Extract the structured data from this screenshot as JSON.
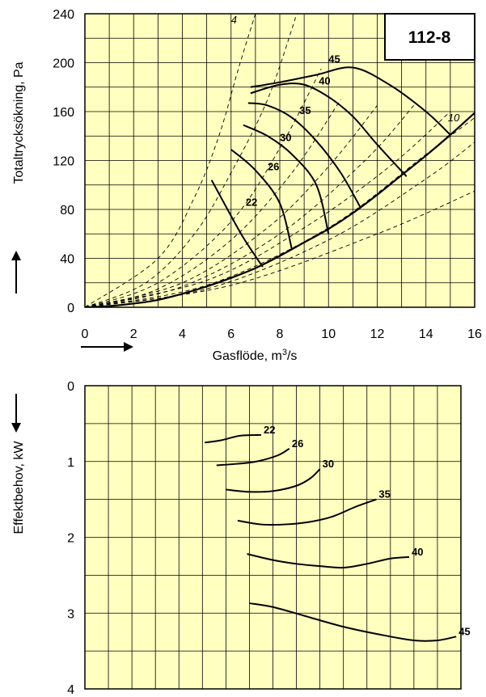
{
  "chart_data": [
    {
      "type": "line",
      "title": "",
      "badge": "112-8",
      "xlabel": "Gasflöde, m",
      "xlabel_sup": "3",
      "xlabel_suffix": "/s",
      "ylabel": "Totaltrycksökning, Pa",
      "xlim": [
        0,
        16
      ],
      "ylim": [
        0,
        240
      ],
      "xticks": [
        "0",
        "2",
        "4",
        "6",
        "8",
        "10",
        "12",
        "14",
        "16"
      ],
      "yticks": [
        "0",
        "40",
        "80",
        "120",
        "160",
        "200",
        "240"
      ],
      "grid": true,
      "background": "#ffffc0",
      "system_curve": {
        "x": [
          0,
          1,
          2,
          3,
          4,
          5,
          6,
          7,
          8,
          9,
          10,
          11,
          12,
          13,
          14,
          15,
          16
        ],
        "y": [
          0,
          1,
          3,
          6,
          11,
          17,
          24,
          32,
          42,
          53,
          64,
          77,
          92,
          108,
          124,
          141,
          159
        ]
      },
      "efficiency_labels": [
        {
          "label": "4",
          "x": 6.0,
          "y": 232
        },
        {
          "label": "10",
          "x": 14.9,
          "y": 152
        }
      ],
      "speed_curves": [
        {
          "label": "45",
          "label_x": 10.0,
          "label_y": 200,
          "x": [
            6.8,
            8.0,
            9.5,
            11.0,
            12.5,
            14.0,
            15.0
          ],
          "y": [
            180,
            184,
            190,
            196,
            182,
            160,
            141
          ]
        },
        {
          "label": "40",
          "label_x": 9.6,
          "label_y": 182,
          "x": [
            6.8,
            8.0,
            9.0,
            10.0,
            11.0,
            12.0,
            13.2
          ],
          "y": [
            175,
            182,
            182,
            172,
            156,
            133,
            107
          ]
        },
        {
          "label": "35",
          "label_x": 8.8,
          "label_y": 158,
          "x": [
            6.7,
            7.5,
            8.5,
            9.5,
            10.5,
            11.3
          ],
          "y": [
            167,
            165,
            155,
            136,
            110,
            82
          ]
        },
        {
          "label": "30",
          "label_x": 8.0,
          "label_y": 136,
          "x": [
            6.5,
            7.5,
            8.5,
            9.5,
            10.0
          ],
          "y": [
            149,
            140,
            125,
            100,
            60
          ]
        },
        {
          "label": "26",
          "label_x": 7.5,
          "label_y": 112,
          "x": [
            6.0,
            7.0,
            8.0,
            8.5
          ],
          "y": [
            129,
            112,
            85,
            47
          ]
        },
        {
          "label": "22",
          "label_x": 6.6,
          "label_y": 83,
          "x": [
            5.2,
            5.8,
            6.5,
            7.3
          ],
          "y": [
            104,
            82,
            57,
            33
          ]
        }
      ],
      "efficiency_lines": [
        {
          "x": [
            0,
            3,
            4.5,
            5.5,
            6.3,
            7.0
          ],
          "y": [
            0,
            40,
            90,
            140,
            195,
            240
          ]
        },
        {
          "x": [
            0,
            2.5,
            4.5,
            6.0,
            7.5,
            8.7
          ],
          "y": [
            0,
            20,
            60,
            110,
            170,
            240
          ]
        },
        {
          "x": [
            0,
            3,
            6,
            8,
            9.7
          ],
          "y": [
            0,
            20,
            70,
            130,
            195
          ]
        },
        {
          "x": [
            0,
            3,
            6,
            8.5,
            10.5
          ],
          "y": [
            0,
            15,
            55,
            110,
            170
          ]
        },
        {
          "x": [
            0,
            4,
            7.5,
            10,
            12
          ],
          "y": [
            0,
            20,
            65,
            115,
            165
          ]
        },
        {
          "x": [
            0,
            4,
            8,
            11.5,
            13.5
          ],
          "y": [
            0,
            17,
            60,
            120,
            165
          ]
        },
        {
          "x": [
            0,
            5,
            9,
            12.5,
            15
          ],
          "y": [
            0,
            22,
            65,
            115,
            160
          ]
        },
        {
          "x": [
            0,
            5,
            10,
            14,
            16
          ],
          "y": [
            0,
            18,
            65,
            125,
            155
          ]
        },
        {
          "x": [
            0,
            5,
            10,
            14,
            16
          ],
          "y": [
            0,
            15,
            55,
            105,
            135
          ]
        },
        {
          "x": [
            0,
            6,
            12,
            16
          ],
          "y": [
            0,
            18,
            60,
            95
          ]
        }
      ]
    },
    {
      "type": "line",
      "title": "",
      "xlabel": "",
      "ylabel": "Effektbehov, kW",
      "xlim": [
        0,
        16
      ],
      "ylim": [
        0,
        4
      ],
      "y_inverted": true,
      "yticks": [
        "0",
        "1",
        "2",
        "3",
        "4"
      ],
      "grid": true,
      "background": "#ffffc0",
      "series": [
        {
          "name": "22",
          "x": [
            5.1,
            5.8,
            6.6,
            7.5
          ],
          "y": [
            0.75,
            0.72,
            0.66,
            0.65
          ]
        },
        {
          "name": "26",
          "x": [
            5.6,
            6.5,
            7.3,
            8.2,
            8.7
          ],
          "y": [
            1.05,
            1.03,
            1.0,
            0.92,
            0.83
          ]
        },
        {
          "name": "30",
          "x": [
            6.0,
            7.0,
            8.0,
            9.0,
            9.6,
            10.0
          ],
          "y": [
            1.37,
            1.4,
            1.39,
            1.32,
            1.22,
            1.1
          ]
        },
        {
          "name": "35",
          "x": [
            6.5,
            7.5,
            8.5,
            9.5,
            10.5,
            11.5,
            12.4
          ],
          "y": [
            1.78,
            1.83,
            1.83,
            1.8,
            1.73,
            1.6,
            1.5
          ]
        },
        {
          "name": "40",
          "x": [
            6.9,
            8.0,
            9.0,
            10.0,
            11.0,
            12.0,
            13.0,
            13.8
          ],
          "y": [
            2.22,
            2.3,
            2.35,
            2.38,
            2.4,
            2.35,
            2.28,
            2.26
          ]
        },
        {
          "name": "45",
          "x": [
            7.0,
            8.0,
            9.5,
            11.0,
            12.5,
            14.0,
            15.0,
            15.8
          ],
          "y": [
            2.87,
            2.92,
            3.05,
            3.18,
            3.28,
            3.36,
            3.36,
            3.31
          ]
        }
      ]
    }
  ]
}
